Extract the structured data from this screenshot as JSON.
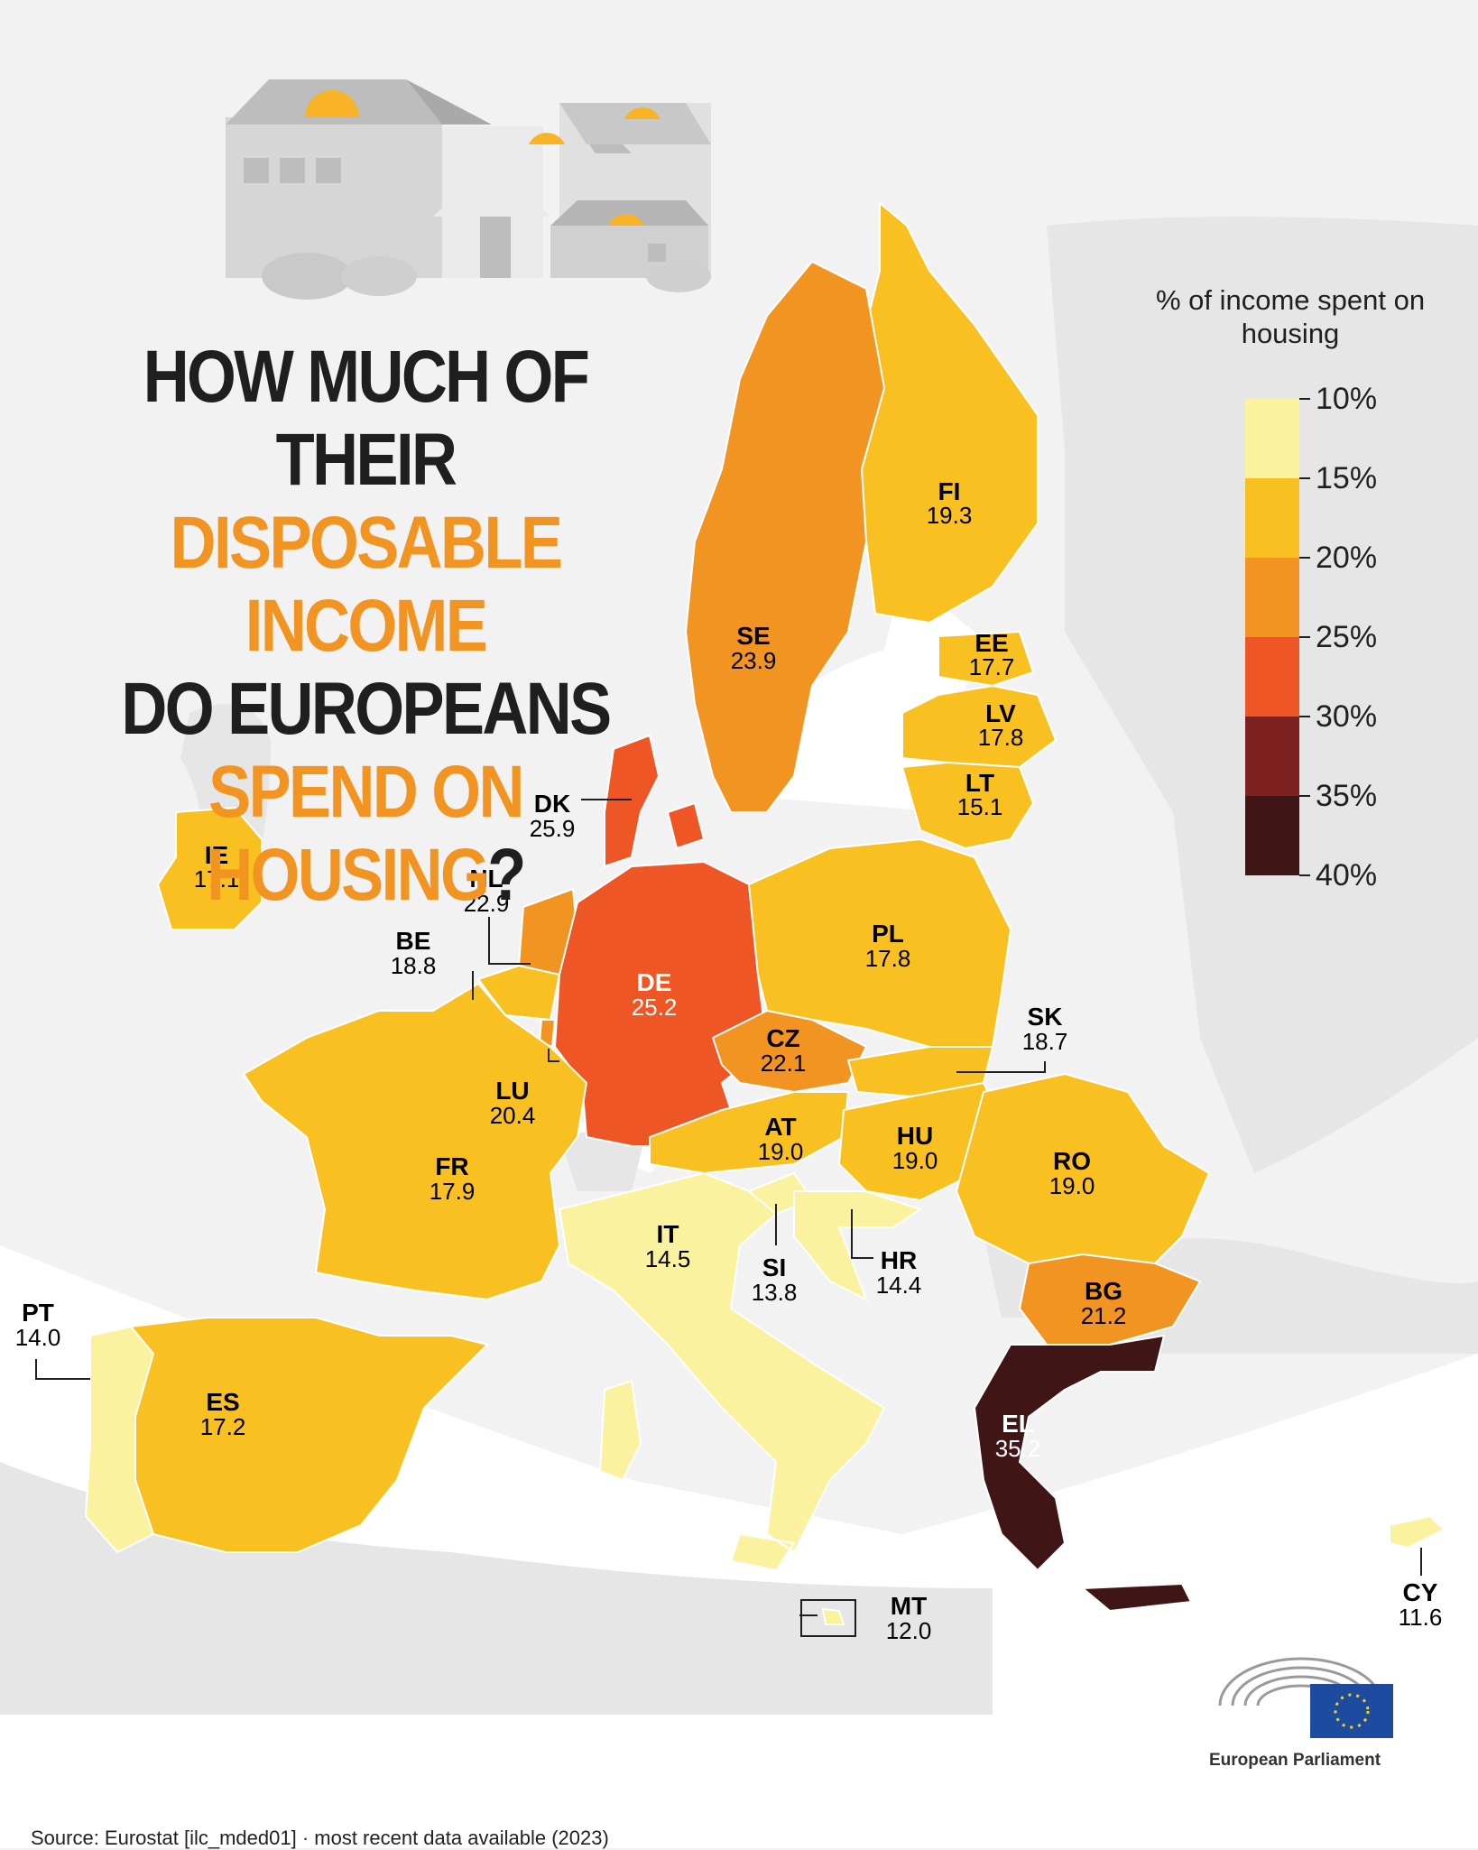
{
  "title": {
    "line1": "HOW MUCH OF THEIR",
    "line2": "DISPOSABLE INCOME",
    "line3": "DO EUROPEANS",
    "line4_highlight": "SPEND ON HOUSING",
    "line4_end": "?"
  },
  "legend": {
    "title": "% of income spent on housing",
    "ticks": [
      "10%",
      "15%",
      "20%",
      "25%",
      "30%",
      "35%",
      "40%"
    ],
    "bins": [
      {
        "range": "10-15",
        "color": "#fbf2a0"
      },
      {
        "range": "15-20",
        "color": "#f8c020"
      },
      {
        "range": "20-25",
        "color": "#f29422"
      },
      {
        "range": "25-30",
        "color": "#ee5626"
      },
      {
        "range": "30-35",
        "color": "#7d2020"
      },
      {
        "range": "35-40",
        "color": "#3f1515"
      }
    ]
  },
  "countries": [
    {
      "code": "FI",
      "value": "19.3",
      "color": "#f8c020"
    },
    {
      "code": "SE",
      "value": "23.9",
      "color": "#f29422"
    },
    {
      "code": "EE",
      "value": "17.7",
      "color": "#f8c020"
    },
    {
      "code": "LV",
      "value": "17.8",
      "color": "#f8c020"
    },
    {
      "code": "LT",
      "value": "15.1",
      "color": "#f8c020"
    },
    {
      "code": "DK",
      "value": "25.9",
      "color": "#ee5626"
    },
    {
      "code": "IE",
      "value": "17.1",
      "color": "#f8c020"
    },
    {
      "code": "NL",
      "value": "22.9",
      "color": "#f29422"
    },
    {
      "code": "BE",
      "value": "18.8",
      "color": "#f8c020"
    },
    {
      "code": "DE",
      "value": "25.2",
      "color": "#ee5626"
    },
    {
      "code": "PL",
      "value": "17.8",
      "color": "#f8c020"
    },
    {
      "code": "CZ",
      "value": "22.1",
      "color": "#f29422"
    },
    {
      "code": "SK",
      "value": "18.7",
      "color": "#f8c020"
    },
    {
      "code": "LU",
      "value": "20.4",
      "color": "#f29422"
    },
    {
      "code": "FR",
      "value": "17.9",
      "color": "#f8c020"
    },
    {
      "code": "AT",
      "value": "19.0",
      "color": "#f8c020"
    },
    {
      "code": "HU",
      "value": "19.0",
      "color": "#f8c020"
    },
    {
      "code": "RO",
      "value": "19.0",
      "color": "#f8c020"
    },
    {
      "code": "IT",
      "value": "14.5",
      "color": "#fbf2a0"
    },
    {
      "code": "SI",
      "value": "13.8",
      "color": "#fbf2a0"
    },
    {
      "code": "HR",
      "value": "14.4",
      "color": "#fbf2a0"
    },
    {
      "code": "BG",
      "value": "21.2",
      "color": "#f29422"
    },
    {
      "code": "PT",
      "value": "14.0",
      "color": "#fbf2a0"
    },
    {
      "code": "ES",
      "value": "17.2",
      "color": "#f8c020"
    },
    {
      "code": "EL",
      "value": "35.2",
      "color": "#3f1515"
    },
    {
      "code": "MT",
      "value": "12.0",
      "color": "#fbf2a0"
    },
    {
      "code": "CY",
      "value": "11.6",
      "color": "#fbf2a0"
    }
  ],
  "source": "Source: Eurostat [ilc_mded01]  ·  most recent data available (2023)",
  "logo_text": "European Parliament",
  "colors": {
    "background": "#f2f2f2",
    "sea": "#ffffff",
    "non_eu": "#e6e6e6",
    "dark_text": "#1f1f1f",
    "accent": "#f29422"
  }
}
